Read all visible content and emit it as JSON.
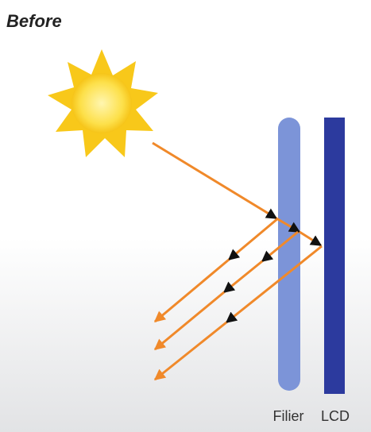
{
  "header": {
    "title": "Before"
  },
  "labels": {
    "filter": "Filier",
    "lcd": "LCD"
  }
}
